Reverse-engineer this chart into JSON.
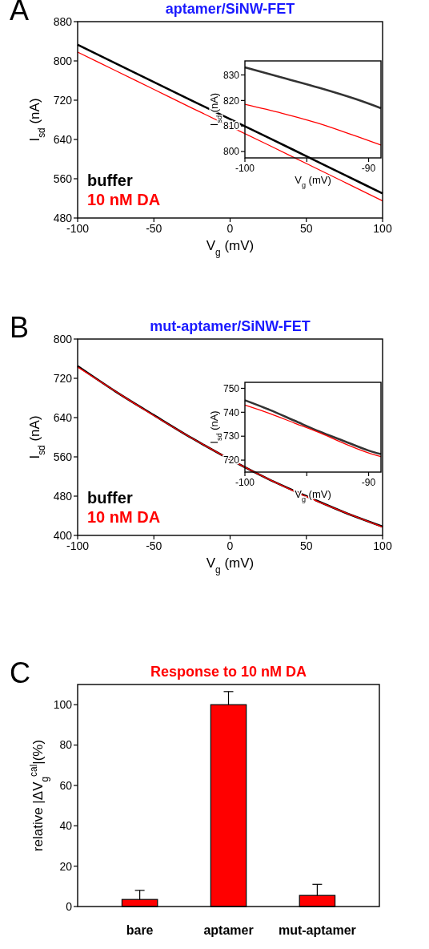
{
  "chart_data": [
    {
      "type": "line",
      "title": "aptamer/SiNW-FET",
      "xlabel": "V$_{g}$ (mV)",
      "ylabel": "I$_{sd}$ (nA)",
      "annotations": [
        "A"
      ],
      "legend": "bottom left",
      "grid": false,
      "xlim": [
        -100,
        100
      ],
      "xticks": [
        -100,
        -50,
        0,
        50,
        100
      ],
      "ylim": [
        480,
        880
      ],
      "yticks": [
        480,
        560,
        640,
        720,
        800,
        880
      ],
      "series": [
        {
          "name": "buffer",
          "color": "#000000",
          "x": [
            -100,
            -75,
            -50,
            -25,
            25,
            50,
            75,
            100
          ],
          "values": [
            833,
            795,
            757,
            719,
            644,
            606,
            568,
            530
          ]
        },
        {
          "name": "10 nM DA",
          "color": "#ff0000",
          "x": [
            -100,
            -75,
            -50,
            -25,
            25,
            50,
            75,
            100
          ],
          "values": [
            818,
            780,
            742,
            704,
            629,
            591,
            553,
            515
          ]
        }
      ]
    },
    {
      "type": "line",
      "xlabel": "V$_{g}$ (mV)",
      "ylabel": "I$_{sd}$ (nA)",
      "grid": false,
      "xlim": [
        -100,
        -89
      ],
      "xticks": [
        -100,
        {
          "value": -95,
          "label": null
        },
        -90
      ],
      "ylim": [
        797.5,
        835.5
      ],
      "yticks": [
        800,
        810,
        820,
        830
      ],
      "series": [
        {
          "color": "#333333",
          "x": [
            -100,
            -97,
            -94,
            -91,
            -89
          ],
          "values": [
            833,
            829,
            825,
            820.5,
            817
          ]
        },
        {
          "color": "#ff0000",
          "x": [
            -100,
            -97,
            -94,
            -91,
            -89
          ],
          "values": [
            818.5,
            815,
            811,
            806,
            802.5
          ]
        }
      ]
    },
    {
      "type": "line",
      "title": "mut-aptamer/SiNW-FET",
      "xlabel": "V$_{g}$ (mV)",
      "ylabel": "I$_{sd}$ (nA)",
      "annotations": [
        "B"
      ],
      "legend": "bottom left",
      "grid": false,
      "xlim": [
        -100,
        100
      ],
      "xticks": [
        -100,
        -50,
        0,
        50,
        100
      ],
      "ylim": [
        400,
        800
      ],
      "yticks": [
        400,
        480,
        560,
        640,
        720,
        800
      ],
      "series": [
        {
          "name": "buffer",
          "color": "#000000",
          "x": [
            -100,
            -75,
            -50,
            -25,
            25,
            50,
            75,
            100
          ],
          "values": [
            745,
            693,
            645,
            598,
            515,
            480,
            447,
            418
          ]
        },
        {
          "name": "10 nM DA",
          "color": "#ff0000",
          "x": [
            -100,
            -75,
            -50,
            -25,
            25,
            50,
            75,
            100
          ],
          "values": [
            743,
            693,
            644,
            598,
            515,
            479,
            447,
            417
          ]
        }
      ]
    },
    {
      "type": "line",
      "xlabel": "V$_{g}$ (mV)",
      "ylabel": "I$_{sd}$ (nA)",
      "grid": false,
      "xlim": [
        -100,
        -89
      ],
      "xticks": [
        -100,
        {
          "value": -95,
          "label": null
        },
        -90
      ],
      "ylim": [
        715,
        752.5
      ],
      "yticks": [
        720,
        730,
        740,
        750
      ],
      "series": [
        {
          "color": "#333333",
          "x": [
            -100,
            -98,
            -96,
            -94,
            -92,
            -90,
            -89
          ],
          "values": [
            745,
            741,
            736.5,
            732,
            728,
            724,
            722.5
          ]
        },
        {
          "color": "#ff0000",
          "x": [
            -100,
            -98,
            -96,
            -94,
            -92,
            -90,
            -89
          ],
          "values": [
            743,
            739.5,
            735.5,
            731.5,
            727,
            723,
            721.5
          ]
        }
      ]
    },
    {
      "type": "bar",
      "title": "Response to 10 nM DA",
      "ylabel": "relative |ΔV$_{g}$$^{cal}$|(%)",
      "annotations": [
        "C"
      ],
      "grid": false,
      "categories": [
        "bare",
        "aptamer",
        "mut-aptamer"
      ],
      "ylim": [
        0,
        110
      ],
      "yticks": [
        0,
        20,
        40,
        60,
        80,
        100
      ],
      "values": [
        3.5,
        100,
        5.5
      ],
      "color": "#ff0000",
      "errors": [
        [
          3.5,
          8
        ],
        [
          100,
          106.5
        ],
        [
          5.5,
          11
        ]
      ]
    }
  ]
}
